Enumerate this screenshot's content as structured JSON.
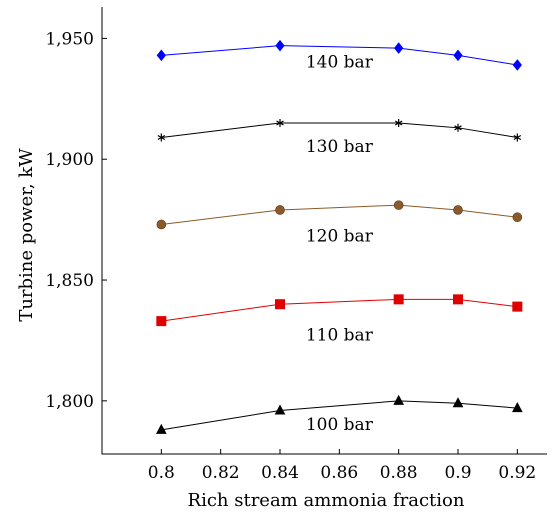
{
  "chart_data": {
    "type": "line",
    "title": "",
    "xlabel": "Rich stream ammonia fraction",
    "ylabel": "Turbine power, kW",
    "xlim": [
      0.78,
      0.93
    ],
    "ylim": [
      1778,
      1963
    ],
    "grid": false,
    "x_ticks": [
      0.8,
      0.82,
      0.84,
      0.86,
      0.88,
      0.9,
      0.92
    ],
    "x_tick_labels": [
      "0.8",
      "0.82",
      "0.84",
      "0.86",
      "0.88",
      "0.9",
      "0.92"
    ],
    "y_ticks": [
      1800,
      1850,
      1900,
      1950
    ],
    "y_tick_labels": [
      "1,800",
      "1,850",
      "1,900",
      "1,950"
    ],
    "x": [
      0.8,
      0.84,
      0.88,
      0.9,
      0.92
    ],
    "series": [
      {
        "label": "140 bar",
        "values": [
          1943,
          1947,
          1946,
          1943,
          1939
        ],
        "color": "#0000ff",
        "marker": "diamond",
        "label_pos": [
          0.86,
          1938
        ]
      },
      {
        "label": "130 bar",
        "values": [
          1909,
          1915,
          1915,
          1913,
          1909
        ],
        "color": "#000000",
        "marker": "star",
        "label_pos": [
          0.86,
          1903
        ]
      },
      {
        "label": "120 bar",
        "values": [
          1873,
          1879,
          1881,
          1879,
          1876
        ],
        "color": "#8b5a2b",
        "marker": "circle",
        "label_pos": [
          0.86,
          1866
        ]
      },
      {
        "label": "110 bar",
        "values": [
          1833,
          1840,
          1842,
          1842,
          1839
        ],
        "color": "#e00000",
        "marker": "square",
        "label_pos": [
          0.86,
          1825
        ]
      },
      {
        "label": "100 bar",
        "values": [
          1788,
          1796,
          1800,
          1799,
          1797
        ],
        "color": "#000000",
        "marker": "triangle",
        "label_pos": [
          0.86,
          1788
        ]
      }
    ]
  }
}
